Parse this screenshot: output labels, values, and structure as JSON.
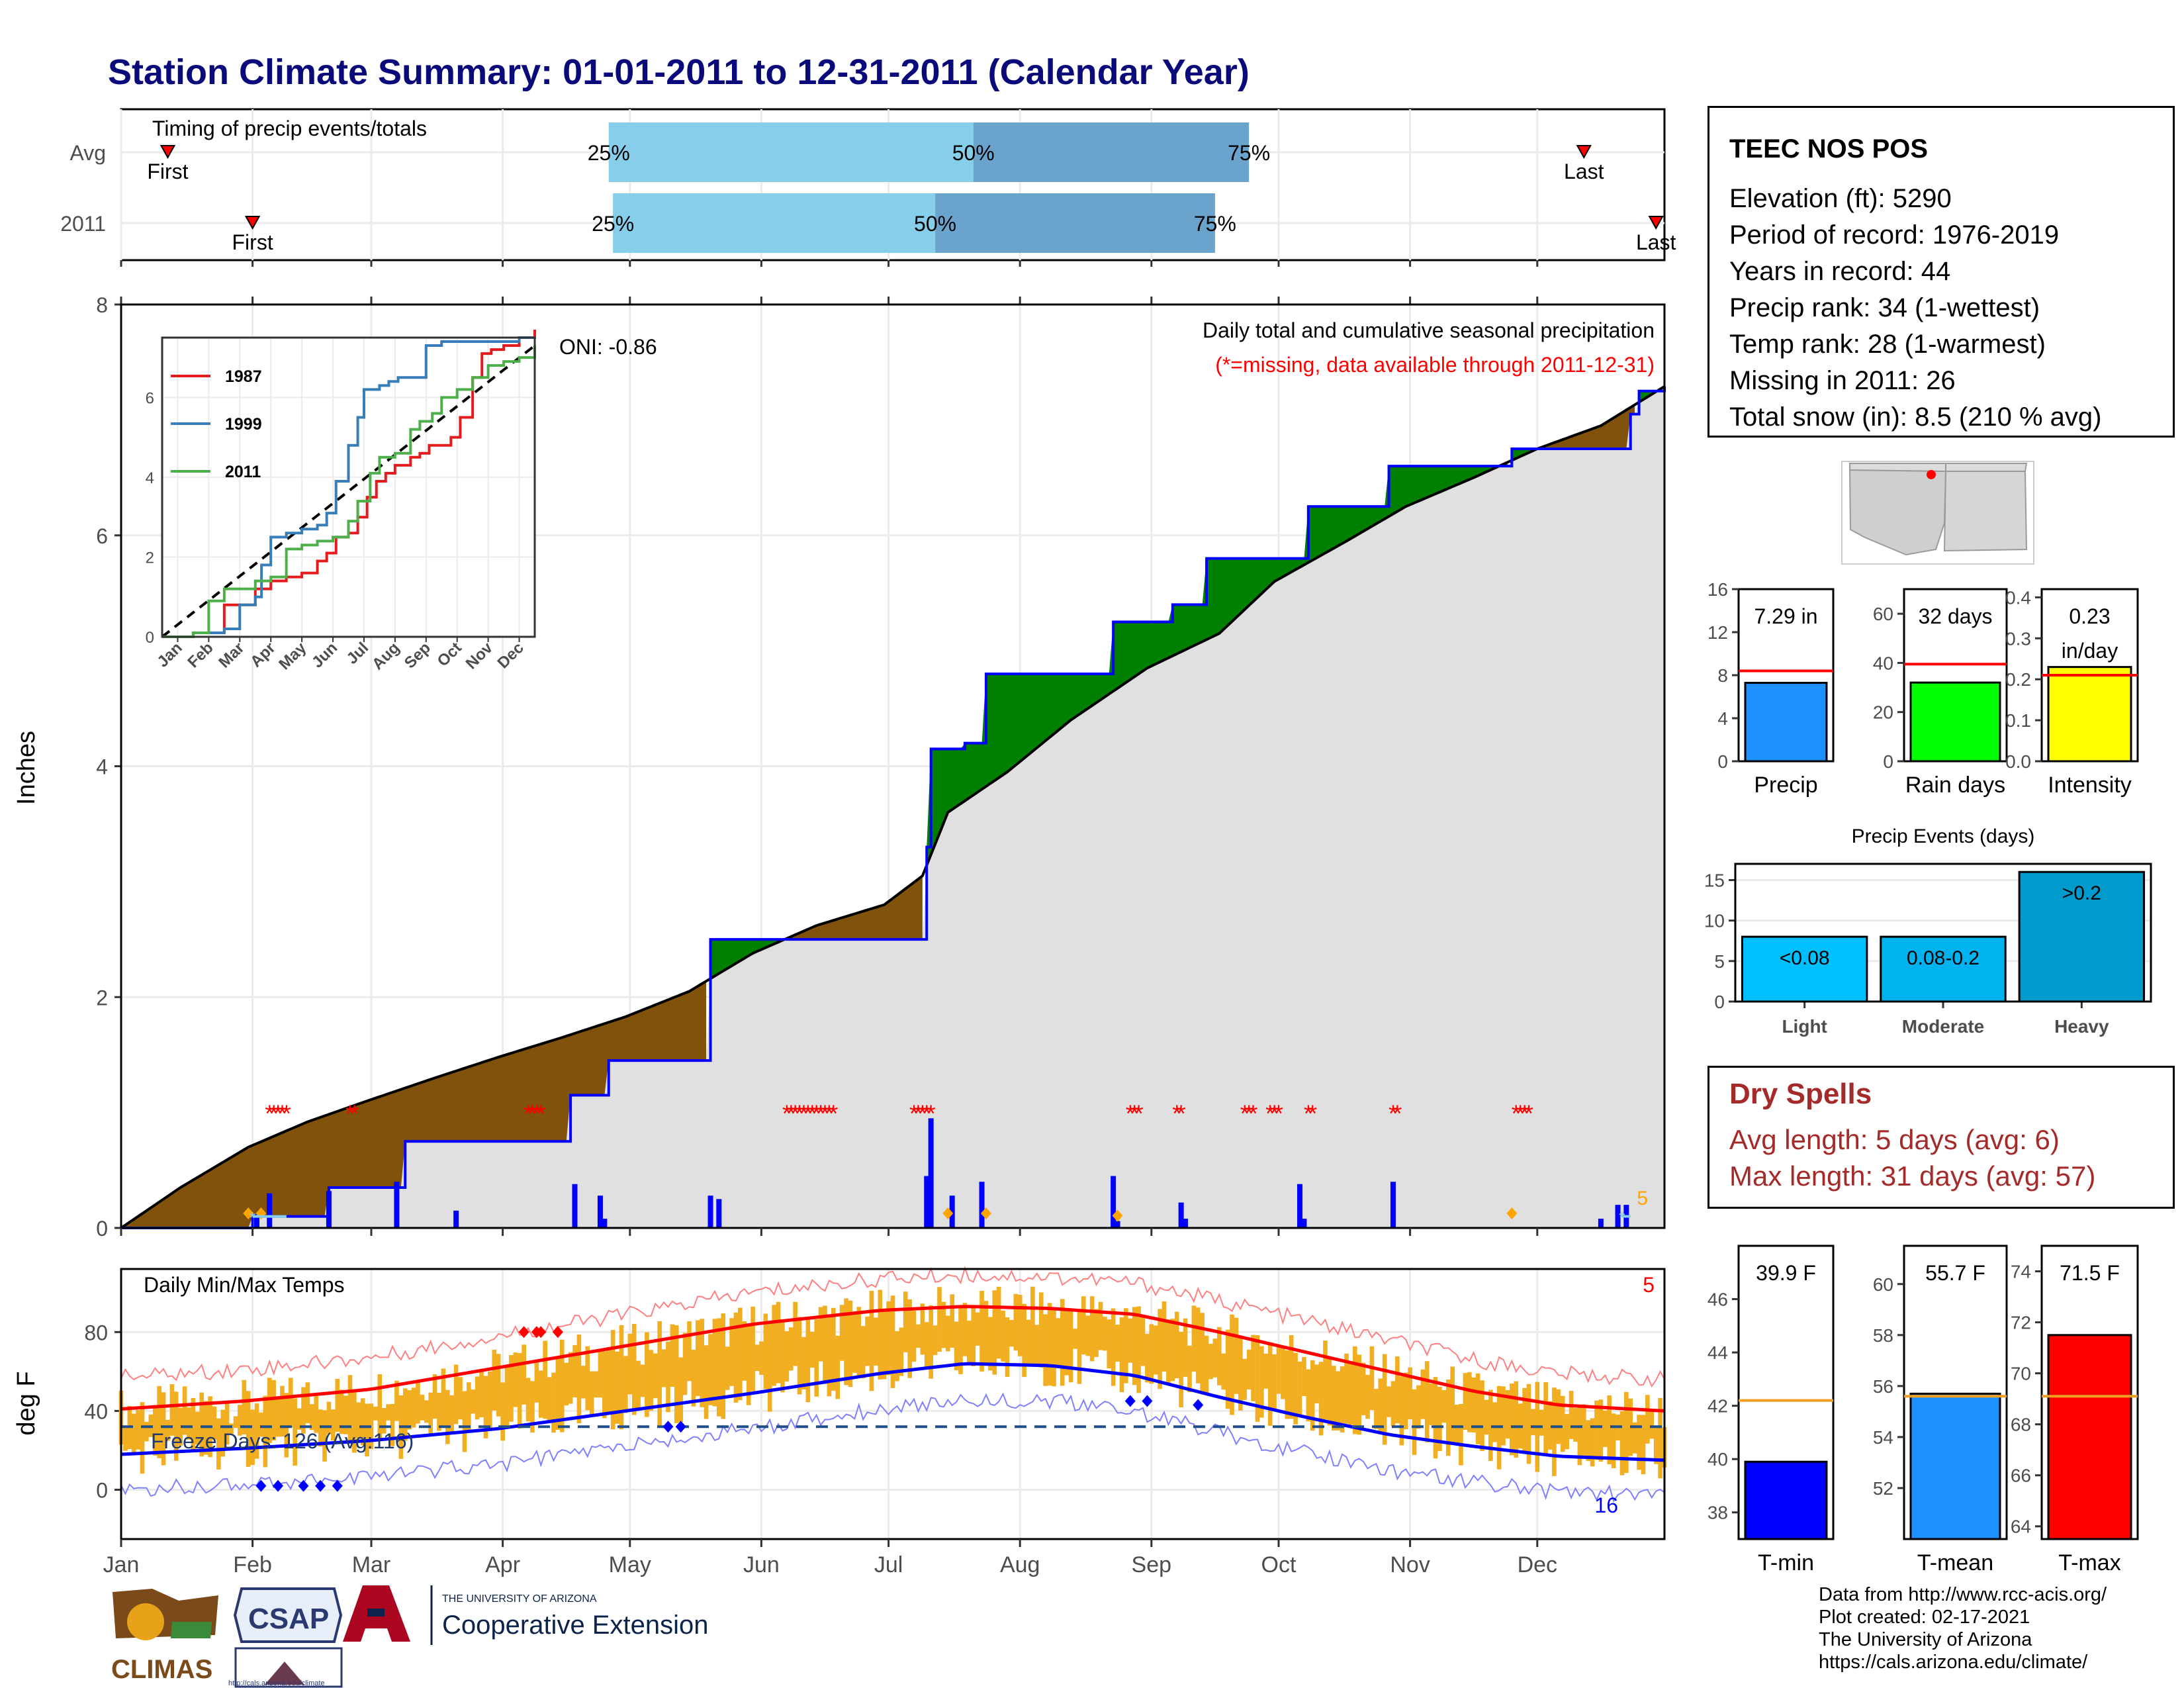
{
  "page_title": "Station Climate Summary: 01-01-2011 to 12-31-2011 (Calendar Year)",
  "colors": {
    "title": "#0a0a7a",
    "brown": "#80520c",
    "green": "#008000",
    "grey_fill": "#e0e0e0",
    "blue_line": "#0000ff",
    "red": "#ff0000",
    "orange": "#f0ae20",
    "light_blue": "#87ceeb",
    "steel_blue": "#6aa4cc",
    "dry_text": "#a52a2a"
  },
  "station_info": {
    "name": "TEEC NOS POS",
    "elevation": "Elevation (ft): 5290",
    "period": "Period of record: 1976-2019",
    "years": "Years in record: 44",
    "precip_rank": "Precip rank: 34 (1-wettest)",
    "temp_rank": "Temp rank: 28 (1-warmest)",
    "missing": "Missing in 2011: 26",
    "snow": "Total snow (in): 8.5 (210 % avg)"
  },
  "dry_spells": {
    "title": "Dry Spells",
    "avg": "Avg length: 5 days (avg: 6)",
    "max": "Max length: 31 days (avg: 57)"
  },
  "credits": {
    "line1": "Data from http://www.rcc-acis.org/",
    "line2": "Plot created: 02-17-2021",
    "line3": "The University of Arizona",
    "line4": "https://cals.arizona.edu/climate/"
  },
  "logos": {
    "climas": "CLIMAS",
    "csap": "CSAP",
    "csap_url": "http://cals.arizona.edu/climate",
    "ua_small": "THE UNIVERSITY OF ARIZONA",
    "ua_big": "Cooperative Extension"
  },
  "month_labels": [
    "Jan",
    "Feb",
    "Mar",
    "Apr",
    "May",
    "Jun",
    "Jul",
    "Aug",
    "Sep",
    "Oct",
    "Nov",
    "Dec"
  ],
  "chart_data": [
    {
      "id": "timing",
      "type": "bar",
      "title": "Timing of precip events/totals",
      "rows": [
        {
          "label": "Avg",
          "first": "Jan 12",
          "last": "Dec 12",
          "p25": "Apr 26",
          "p50": "Jul 21",
          "p75": "Sep 24"
        },
        {
          "label": "2011",
          "first": "Feb 1",
          "last": "Dec 29",
          "p25": "Apr 27",
          "p50": "Jul 12",
          "p75": "Sep 16"
        }
      ],
      "first_label": "First",
      "last_label": "Last",
      "p_labels": [
        "25%",
        "50%",
        "75%"
      ]
    },
    {
      "id": "precip",
      "type": "area",
      "ylabel": "Inches",
      "ylim": [
        0,
        8
      ],
      "yticks": [
        0,
        2,
        4,
        6,
        8
      ],
      "title": "Daily total and cumulative seasonal precipitation",
      "subtitle": "(*=missing, data available through 2011-12-31)",
      "oni": "ONI: -0.86",
      "corner_count": "5",
      "avg_cumulative": {
        "day": [
          1,
          15,
          31,
          45,
          59,
          75,
          90,
          105,
          120,
          135,
          150,
          165,
          181,
          190,
          196,
          210,
          225,
          243,
          260,
          273,
          290,
          304,
          320,
          335,
          350,
          365
        ],
        "value": [
          0.0,
          0.35,
          0.7,
          0.92,
          1.1,
          1.3,
          1.48,
          1.65,
          1.83,
          2.05,
          2.38,
          2.62,
          2.8,
          3.05,
          3.6,
          3.95,
          4.4,
          4.85,
          5.15,
          5.6,
          5.95,
          6.25,
          6.5,
          6.75,
          6.95,
          7.29
        ]
      },
      "obs_cumulative": {
        "day": [
          1,
          32,
          50,
          68,
          107,
          116,
          140,
          191,
          192,
          200,
          205,
          235,
          249,
          257,
          279,
          281,
          300,
          329,
          338,
          357,
          359,
          365
        ],
        "value": [
          0.0,
          0.1,
          0.35,
          0.75,
          1.15,
          1.45,
          2.5,
          3.3,
          4.15,
          4.2,
          4.8,
          5.25,
          5.4,
          5.8,
          5.8,
          6.25,
          6.6,
          6.75,
          6.75,
          7.05,
          7.25,
          7.29
        ]
      },
      "daily_bars": {
        "day": [
          33,
          36,
          50,
          66,
          80,
          108,
          114,
          115,
          140,
          142,
          191,
          192,
          197,
          204,
          235,
          236,
          251,
          252,
          279,
          280,
          301,
          350,
          354,
          356
        ],
        "value": [
          0.12,
          0.3,
          0.32,
          0.4,
          0.15,
          0.38,
          0.28,
          0.08,
          0.28,
          0.25,
          0.45,
          0.95,
          0.28,
          0.4,
          0.45,
          0.06,
          0.22,
          0.08,
          0.38,
          0.08,
          0.4,
          0.08,
          0.2,
          0.2
        ]
      },
      "snow_days": [
        31,
        34,
        196,
        205,
        236,
        329
      ],
      "missing_days": [
        [
          36,
          40
        ],
        [
          55,
          56
        ],
        [
          97,
          100
        ],
        [
          158,
          169
        ],
        [
          188,
          192
        ],
        [
          239,
          241
        ],
        [
          250,
          251
        ],
        [
          266,
          268
        ],
        [
          272,
          274
        ],
        [
          281,
          282
        ],
        [
          301,
          302
        ],
        [
          330,
          333
        ]
      ]
    },
    {
      "id": "climo_inset",
      "type": "line",
      "ylim": [
        0,
        7.5
      ],
      "yticks": [
        0,
        2,
        4,
        6
      ],
      "series": [
        {
          "name": "1987",
          "color": "#e41a1c",
          "x": [
            0,
            1,
            2,
            3,
            3.5,
            4,
            4.5,
            5,
            5.3,
            5.6,
            6,
            6.3,
            6.6,
            6.9,
            7.2,
            7.5,
            8,
            8.3,
            8.6,
            9,
            9.3,
            9.6,
            10,
            10.3,
            10.6,
            11,
            11.5,
            12
          ],
          "y": [
            0,
            0.1,
            0.8,
            1.2,
            1.4,
            1.5,
            1.6,
            1.9,
            2.1,
            2.5,
            2.6,
            3.0,
            3.5,
            3.9,
            4.1,
            4.3,
            4.5,
            4.6,
            4.8,
            4.8,
            5.0,
            5.5,
            6.5,
            7.1,
            7.2,
            7.3,
            7.5,
            7.7
          ]
        },
        {
          "name": "1999",
          "color": "#377eb8",
          "x": [
            0,
            1,
            2,
            2.5,
            3,
            3.2,
            3.5,
            4,
            4.5,
            5,
            5.3,
            5.6,
            6,
            6.3,
            6.5,
            7,
            7.3,
            7.6,
            8,
            8.5,
            9,
            9.5,
            10,
            10.5,
            11,
            11.5,
            12
          ],
          "y": [
            0,
            0.1,
            0.2,
            0.8,
            1.0,
            1.8,
            2.5,
            2.6,
            2.7,
            2.8,
            3.1,
            3.9,
            4.8,
            5.5,
            6.2,
            6.3,
            6.4,
            6.5,
            6.5,
            7.3,
            7.4,
            7.4,
            7.4,
            7.4,
            7.4,
            7.5,
            7.5
          ]
        },
        {
          "name": "2011",
          "color": "#4daf4a",
          "x": [
            0,
            1,
            1.5,
            2,
            3,
            3.5,
            4,
            4.5,
            5,
            5.5,
            6,
            6.3,
            6.7,
            7,
            7.5,
            8,
            8.3,
            8.7,
            9,
            9.5,
            10,
            10.5,
            11,
            11.5,
            12
          ],
          "y": [
            0,
            0.1,
            0.9,
            1.2,
            1.4,
            1.5,
            2.2,
            2.3,
            2.4,
            2.5,
            2.9,
            3.4,
            4.1,
            4.5,
            4.6,
            5.2,
            5.4,
            5.6,
            6.0,
            6.2,
            6.5,
            6.8,
            6.9,
            7.0,
            7.3
          ]
        }
      ],
      "avg_line": {
        "x": [
          0,
          12
        ],
        "y": [
          0,
          7.3
        ]
      },
      "xtick_labels": [
        "Jan",
        "Feb",
        "Mar",
        "Apr",
        "May",
        "Jun",
        "Jul",
        "Aug",
        "Sep",
        "Oct",
        "Nov",
        "Dec"
      ]
    },
    {
      "id": "temps",
      "type": "bar",
      "title": "Daily Min/Max Temps",
      "ylabel": "deg F",
      "ylim": [
        -25,
        112
      ],
      "yticks": [
        0,
        40,
        80
      ],
      "freeze_label": "Freeze Days: 126 (Avg:116)",
      "freeze_line": 32,
      "count_red": "5",
      "count_blue": "16",
      "norm_max": {
        "day": [
          1,
          30,
          60,
          90,
          120,
          150,
          180,
          200,
          220,
          240,
          260,
          280,
          300,
          320,
          340,
          365
        ],
        "value": [
          41,
          45,
          51,
          62,
          73,
          84,
          91,
          93,
          92,
          89,
          80,
          70,
          60,
          50,
          43,
          40
        ]
      },
      "norm_min": {
        "day": [
          1,
          30,
          60,
          90,
          120,
          150,
          180,
          200,
          220,
          240,
          260,
          280,
          300,
          320,
          340,
          365
        ],
        "value": [
          18,
          21,
          25,
          31,
          40,
          49,
          59,
          64,
          63,
          58,
          47,
          37,
          28,
          22,
          17,
          15
        ]
      }
    },
    {
      "id": "precip_bars",
      "type": "bar",
      "categories": [
        "Precip",
        "Rain days",
        "Intensity"
      ],
      "values": [
        7.29,
        32,
        0.23
      ],
      "averages": [
        8.4,
        39.5,
        0.21
      ],
      "labels": [
        "7.29 in",
        "32 days",
        "0.23"
      ],
      "label_extra": [
        "",
        "",
        "in/day"
      ],
      "colors": [
        "#1e90ff",
        "#00ff00",
        "#ffff00"
      ],
      "ylims": [
        [
          0,
          16
        ],
        [
          0,
          70
        ],
        [
          0,
          0.42
        ]
      ],
      "yticks": [
        [
          "0",
          "4",
          "8",
          "12",
          "16"
        ],
        [
          "0",
          "20",
          "40",
          "60"
        ],
        [
          "0.0",
          "0.1",
          "0.2",
          "0.3",
          "0.4"
        ]
      ]
    },
    {
      "id": "precip_events",
      "type": "bar",
      "title": "Precip Events (days)",
      "categories": [
        "Light",
        "Moderate",
        "Heavy"
      ],
      "values": [
        8,
        8,
        16
      ],
      "bar_labels": [
        "<0.08",
        "0.08-0.2",
        ">0.2"
      ],
      "colors": [
        "#00bfff",
        "#00b2ee",
        "#009acd"
      ],
      "ylim": [
        0,
        17
      ],
      "yticks": [
        "0",
        "5",
        "10",
        "15"
      ]
    },
    {
      "id": "temp_bars",
      "type": "bar",
      "categories": [
        "T-min",
        "T-mean",
        "T-max"
      ],
      "values": [
        39.9,
        55.7,
        71.5
      ],
      "averages": [
        42.2,
        55.6,
        69.1
      ],
      "labels": [
        "39.9 F",
        "55.7 F",
        "71.5 F"
      ],
      "colors": [
        "#0000ff",
        "#1e90ff",
        "#ff0000"
      ],
      "ylims": [
        [
          37,
          48
        ],
        [
          50,
          61.5
        ],
        [
          63.5,
          75
        ]
      ],
      "yticks": [
        [
          "38",
          "40",
          "42",
          "44",
          "46"
        ],
        [
          "52",
          "54",
          "56",
          "58",
          "60"
        ],
        [
          "64",
          "66",
          "68",
          "70",
          "72",
          "74"
        ]
      ]
    }
  ]
}
